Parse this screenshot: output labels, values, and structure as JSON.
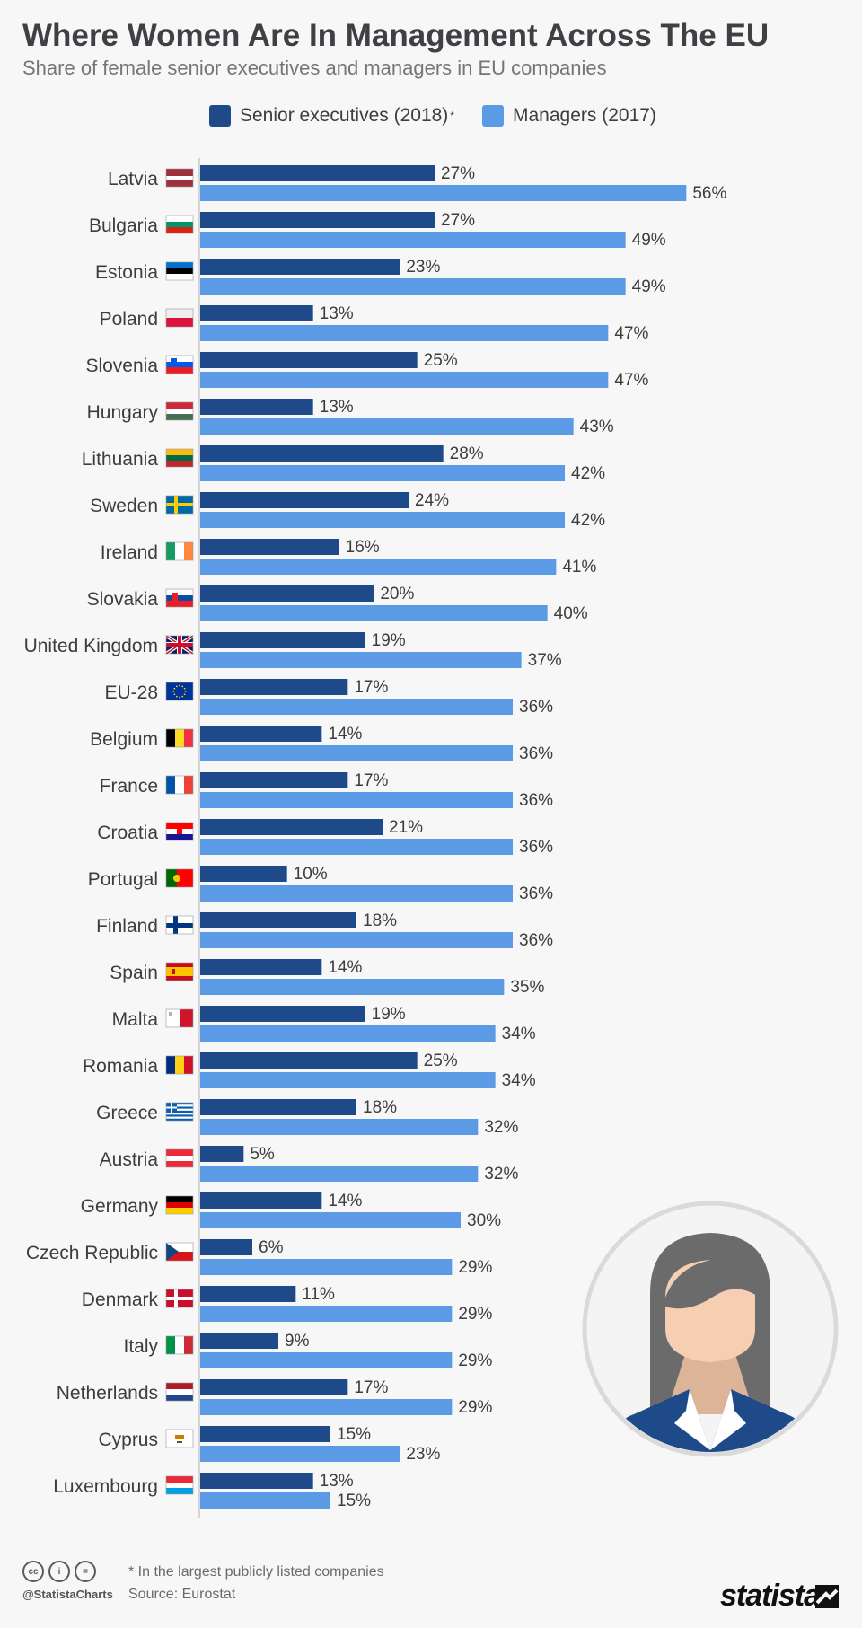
{
  "header": {
    "title": "Where Women Are In Management Across The EU",
    "subtitle": "Share of female senior executives and managers in EU companies"
  },
  "legend": {
    "series1_label": "Senior executives (2018)",
    "series1_mark": "*",
    "series2_label": "Managers (2017)"
  },
  "colors": {
    "series1": "#1f4a8a",
    "series2": "#5b9be6",
    "axis": "#c8c8c8"
  },
  "chart_data": {
    "type": "bar",
    "orientation": "horizontal",
    "categories": [
      "Latvia",
      "Bulgaria",
      "Estonia",
      "Poland",
      "Slovenia",
      "Hungary",
      "Lithuania",
      "Sweden",
      "Ireland",
      "Slovakia",
      "United Kingdom",
      "EU-28",
      "Belgium",
      "France",
      "Croatia",
      "Portugal",
      "Finland",
      "Spain",
      "Malta",
      "Romania",
      "Greece",
      "Austria",
      "Germany",
      "Czech Republic",
      "Denmark",
      "Italy",
      "Netherlands",
      "Cyprus",
      "Luxembourg"
    ],
    "series": [
      {
        "name": "Senior executives (2018)",
        "values": [
          27,
          27,
          23,
          13,
          25,
          13,
          28,
          24,
          16,
          20,
          19,
          17,
          14,
          17,
          21,
          10,
          18,
          14,
          19,
          25,
          18,
          5,
          14,
          6,
          11,
          9,
          17,
          15,
          13
        ]
      },
      {
        "name": "Managers (2017)",
        "values": [
          56,
          49,
          49,
          47,
          47,
          43,
          42,
          42,
          41,
          40,
          37,
          36,
          36,
          36,
          36,
          36,
          36,
          35,
          34,
          34,
          32,
          32,
          30,
          29,
          29,
          29,
          29,
          23,
          15
        ]
      }
    ],
    "value_suffix": "%",
    "xlim": [
      0,
      60
    ],
    "legend_position": "top"
  },
  "flags": [
    "latvia-flag-icon",
    "bulgaria-flag-icon",
    "estonia-flag-icon",
    "poland-flag-icon",
    "slovenia-flag-icon",
    "hungary-flag-icon",
    "lithuania-flag-icon",
    "sweden-flag-icon",
    "ireland-flag-icon",
    "slovakia-flag-icon",
    "united-kingdom-flag-icon",
    "eu-flag-icon",
    "belgium-flag-icon",
    "france-flag-icon",
    "croatia-flag-icon",
    "portugal-flag-icon",
    "finland-flag-icon",
    "spain-flag-icon",
    "malta-flag-icon",
    "romania-flag-icon",
    "greece-flag-icon",
    "austria-flag-icon",
    "germany-flag-icon",
    "czech-republic-flag-icon",
    "denmark-flag-icon",
    "italy-flag-icon",
    "netherlands-flag-icon",
    "cyprus-flag-icon",
    "luxembourg-flag-icon"
  ],
  "footer": {
    "note": "* In the largest publicly listed companies",
    "source": "Source: Eurostat",
    "handle": "@StatistaCharts",
    "brand": "statista",
    "cc_icons": [
      "cc-icon",
      "by-icon",
      "nd-icon"
    ],
    "cc_labels": [
      "cc",
      "i",
      "="
    ]
  }
}
